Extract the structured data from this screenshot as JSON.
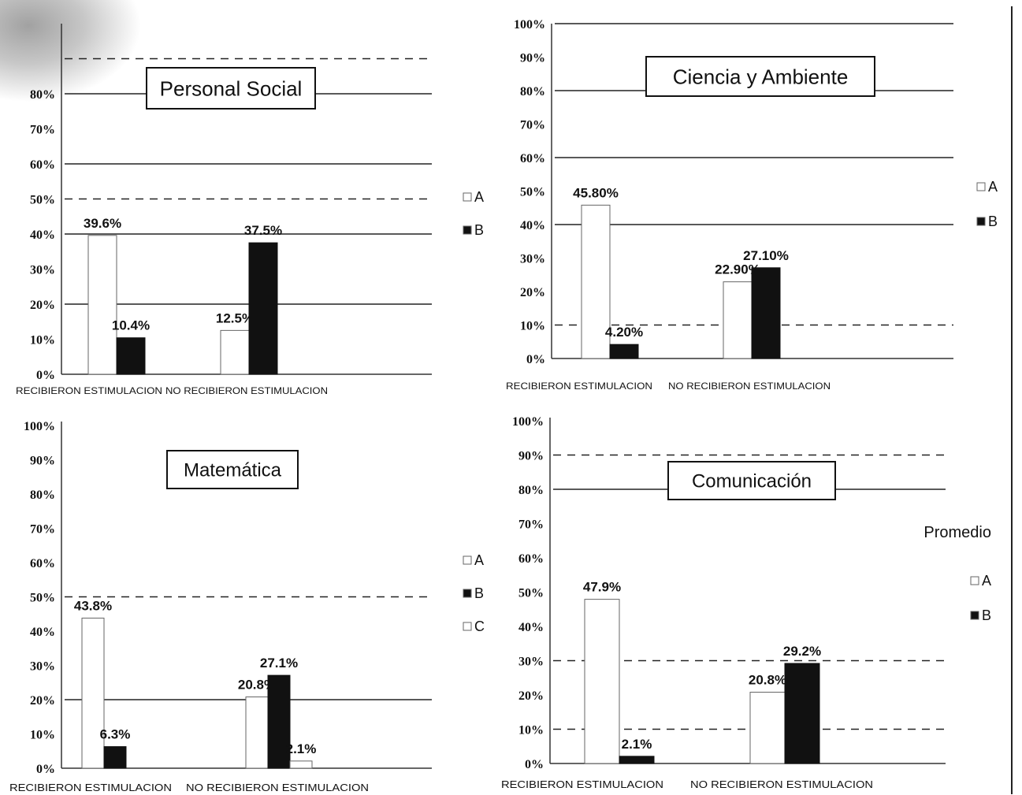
{
  "chart_data": [
    {
      "id": "personal-social",
      "type": "bar",
      "title": "Personal Social",
      "categories": [
        "RECIBIERON ESTIMULACION",
        "NO RECIBIERON ESTIMULACION"
      ],
      "category_labels_text": "RECIBIERON ESTIMULACION NO RECIBIERON ESTIMULACION",
      "series": [
        {
          "name": "A",
          "values": [
            39.6,
            12.5
          ],
          "labels": [
            "39.6%",
            "12.5%"
          ],
          "color": "#ffffff"
        },
        {
          "name": "B",
          "values": [
            10.4,
            37.5
          ],
          "labels": [
            "10.4%",
            "37.5%"
          ],
          "color": "#111111"
        }
      ],
      "yticks": [
        "0%",
        "10%",
        "20%",
        "30%",
        "40%",
        "50%",
        "60%",
        "70%",
        "80%"
      ],
      "ylim": [
        0,
        100
      ],
      "legend": "right",
      "grid": true
    },
    {
      "id": "ciencia-ambiente",
      "type": "bar",
      "title": "Ciencia y Ambiente",
      "categories": [
        "RECIBIERON ESTIMULACION",
        "NO RECIBIERON ESTIMULACION"
      ],
      "series": [
        {
          "name": "A",
          "values": [
            45.8,
            22.9
          ],
          "labels": [
            "45.80%",
            "22.90%"
          ],
          "color": "#ffffff"
        },
        {
          "name": "B",
          "values": [
            4.2,
            27.1
          ],
          "labels": [
            "4.20%",
            "27.10%"
          ],
          "color": "#111111"
        }
      ],
      "yticks": [
        "0%",
        "10%",
        "20%",
        "30%",
        "40%",
        "50%",
        "60%",
        "70%",
        "80%",
        "90%",
        "100%"
      ],
      "ylim": [
        0,
        100
      ],
      "legend": "right",
      "grid": true
    },
    {
      "id": "matematica",
      "type": "bar",
      "title": "Matemática",
      "categories": [
        "RECIBIERON ESTIMULACION",
        "NO RECIBIERON ESTIMULACION"
      ],
      "series": [
        {
          "name": "A",
          "values": [
            43.8,
            20.8
          ],
          "labels": [
            "43.8%",
            "20.8%"
          ],
          "color": "#ffffff"
        },
        {
          "name": "B",
          "values": [
            6.3,
            27.1
          ],
          "labels": [
            "6.3%",
            "27.1%"
          ],
          "color": "#111111"
        },
        {
          "name": "C",
          "values": [
            0,
            2.1
          ],
          "labels": [
            "",
            "2.1%"
          ],
          "color": "#ffffff"
        }
      ],
      "yticks": [
        "0%",
        "10%",
        "20%",
        "30%",
        "40%",
        "50%",
        "60%",
        "70%",
        "80%",
        "90%",
        "100%"
      ],
      "ylim": [
        0,
        100
      ],
      "legend": "right",
      "grid": true
    },
    {
      "id": "comunicacion",
      "type": "bar",
      "title": "Comunicación",
      "annotation": "Promedio",
      "categories": [
        "RECIBIERON ESTIMULACION",
        "NO RECIBIERON ESTIMULACION"
      ],
      "series": [
        {
          "name": "A",
          "values": [
            47.9,
            20.8
          ],
          "labels": [
            "47.9%",
            "20.8%"
          ],
          "color": "#ffffff"
        },
        {
          "name": "B",
          "values": [
            2.1,
            29.2
          ],
          "labels": [
            "2.1%",
            "29.2%"
          ],
          "color": "#111111"
        }
      ],
      "yticks": [
        "0%",
        "10%",
        "20%",
        "30%",
        "40%",
        "50%",
        "60%",
        "70%",
        "80%",
        "90%",
        "100%"
      ],
      "ylim": [
        0,
        100
      ],
      "legend": "right",
      "grid": true
    }
  ]
}
